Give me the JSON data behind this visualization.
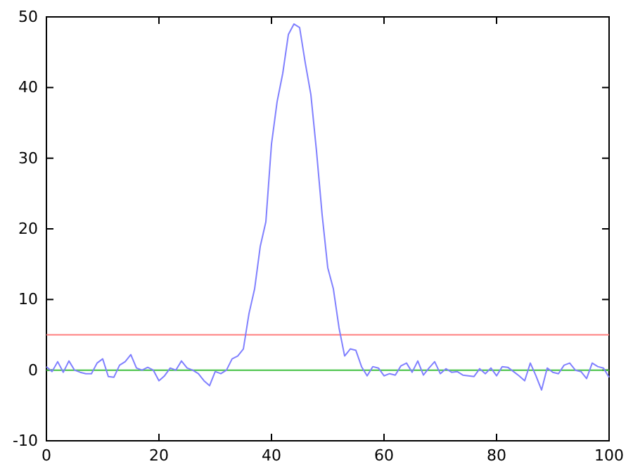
{
  "chart_data": {
    "type": "line",
    "x": [
      0,
      1,
      2,
      3,
      4,
      5,
      6,
      7,
      8,
      9,
      10,
      11,
      12,
      13,
      14,
      15,
      16,
      17,
      18,
      19,
      20,
      21,
      22,
      23,
      24,
      25,
      26,
      27,
      28,
      29,
      30,
      31,
      32,
      33,
      34,
      35,
      36,
      37,
      38,
      39,
      40,
      41,
      42,
      43,
      44,
      45,
      46,
      47,
      48,
      49,
      50,
      51,
      52,
      53,
      54,
      55,
      56,
      57,
      58,
      59,
      60,
      61,
      62,
      63,
      64,
      65,
      66,
      67,
      68,
      69,
      70,
      71,
      72,
      73,
      74,
      75,
      76,
      77,
      78,
      79,
      80,
      81,
      82,
      83,
      84,
      85,
      86,
      87,
      88,
      89,
      90,
      91,
      92,
      93,
      94,
      95,
      96,
      97,
      98,
      99,
      100
    ],
    "series": [
      {
        "color": "#8080ff",
        "values": [
          0.5,
          -0.2,
          1.2,
          -0.3,
          1.3,
          0,
          -0.3,
          -0.5,
          -0.5,
          1,
          1.6,
          -0.9,
          -1,
          0.7,
          1.2,
          2.2,
          0.3,
          0,
          0.4,
          0,
          -1.5,
          -0.8,
          0.3,
          0,
          1.3,
          0.3,
          0,
          -0.5,
          -1.5,
          -2.2,
          -0.2,
          -0.5,
          0,
          1.6,
          2,
          3,
          8,
          11.5,
          17.5,
          21,
          32,
          38,
          42,
          47.5,
          49,
          48.5,
          43.5,
          39,
          31,
          22,
          14.5,
          11.5,
          6,
          2,
          3,
          2.8,
          0.5,
          -0.8,
          0.5,
          0.3,
          -0.8,
          -0.5,
          -0.7,
          0.6,
          1,
          -0.3,
          1.3,
          -0.7,
          0.3,
          1.2,
          -0.5,
          0.2,
          -0.3,
          -0.2,
          -0.7,
          -0.8,
          -0.9,
          0.2,
          -0.5,
          0.3,
          -0.8,
          0.5,
          0.4,
          -0.2,
          -0.8,
          -1.5,
          1,
          -0.8,
          -2.8,
          0.3,
          -0.3,
          -0.5,
          0.7,
          1,
          0,
          -0.2,
          -1.2,
          1,
          0.5,
          0.3,
          -1
        ]
      }
    ],
    "xlim": [
      0,
      100
    ],
    "xticks": [
      0,
      20,
      40,
      60,
      80,
      100
    ],
    "ylim": [
      -10,
      50
    ],
    "yticks": [
      -10,
      0,
      10,
      20,
      30,
      40,
      50
    ],
    "ref_lines": [
      {
        "axis": "y",
        "value": 5,
        "color": "#ff8080"
      },
      {
        "axis": "y",
        "value": 0,
        "color": "#40c040"
      }
    ],
    "grid": false,
    "marker": "none",
    "line_style": "solid"
  }
}
